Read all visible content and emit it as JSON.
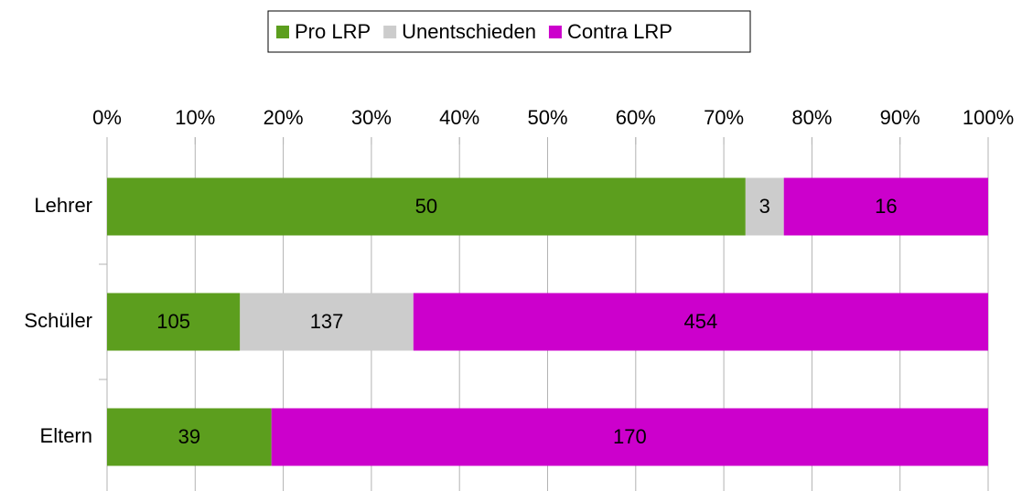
{
  "chart_data": {
    "type": "bar",
    "orientation": "horizontal",
    "stacking": "percent",
    "categories": [
      "Lehrer",
      "Schüler",
      "Eltern"
    ],
    "series": [
      {
        "name": "Pro LRP",
        "color": "#5c9e1e",
        "values": [
          50,
          105,
          39
        ]
      },
      {
        "name": "Unentschieden",
        "color": "#cccccc",
        "values": [
          3,
          137,
          0
        ]
      },
      {
        "name": "Contra LRP",
        "color": "#cc00cc",
        "values": [
          16,
          454,
          170
        ]
      }
    ],
    "xlim": [
      0,
      100
    ],
    "xticks": [
      {
        "value": 0,
        "label": "0%"
      },
      {
        "value": 10,
        "label": "10%"
      },
      {
        "value": 20,
        "label": "20%"
      },
      {
        "value": 30,
        "label": "30%"
      },
      {
        "value": 40,
        "label": "40%"
      },
      {
        "value": 50,
        "label": "50%"
      },
      {
        "value": 60,
        "label": "60%"
      },
      {
        "value": 70,
        "label": "70%"
      },
      {
        "value": 80,
        "label": "80%"
      },
      {
        "value": 90,
        "label": "90%"
      },
      {
        "value": 100,
        "label": "100%"
      }
    ],
    "grid": true,
    "legend": "top"
  }
}
